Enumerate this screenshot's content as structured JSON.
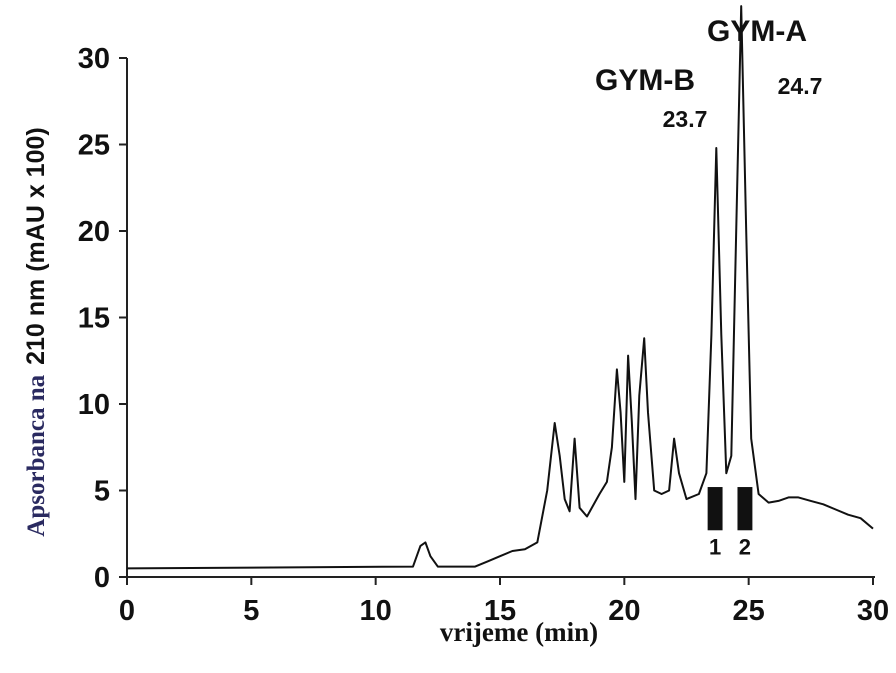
{
  "chart_data": {
    "type": "line",
    "xlabel": "vrijeme (min)",
    "ylabel_part1": "Apsorbanca na",
    "ylabel_part2": "210 nm (mAU x 100)",
    "xlim": [
      0,
      30
    ],
    "ylim": [
      0,
      30
    ],
    "x_ticks": [
      "0",
      "5",
      "10",
      "15",
      "20",
      "25",
      "30"
    ],
    "y_ticks": [
      "0",
      "5",
      "10",
      "15",
      "20",
      "25",
      "30"
    ],
    "grid": false,
    "line_color": "#111111",
    "series": [
      {
        "x": [
          0,
          11.5,
          11.8,
          12.0,
          12.2,
          12.5,
          14.0,
          14.5,
          15.0,
          15.5,
          16.0,
          16.5,
          16.9,
          17.2,
          17.4,
          17.6,
          17.8,
          18.0,
          18.2,
          18.5,
          19.0,
          19.3,
          19.5,
          19.7,
          19.85,
          20.0,
          20.15,
          20.3,
          20.45,
          20.6,
          20.8,
          20.95,
          21.2,
          21.5,
          21.8,
          22.0,
          22.2,
          22.5,
          23.0,
          23.3,
          23.5,
          23.7,
          23.9,
          24.1,
          24.3,
          24.5,
          24.7,
          24.9,
          25.1,
          25.4,
          25.8,
          26.2,
          26.6,
          27.0,
          27.5,
          28.0,
          28.5,
          29.0,
          29.5,
          30.0
        ],
        "y": [
          0.5,
          0.6,
          1.8,
          2.0,
          1.2,
          0.6,
          0.6,
          0.9,
          1.2,
          1.5,
          1.6,
          2.0,
          5.0,
          8.9,
          7.0,
          4.5,
          3.8,
          8.0,
          4.0,
          3.5,
          4.8,
          5.5,
          7.5,
          12.0,
          9.5,
          5.5,
          12.8,
          9.0,
          4.5,
          10.5,
          13.8,
          9.5,
          5.0,
          4.8,
          5.0,
          8.0,
          6.0,
          4.5,
          4.8,
          6.0,
          14.0,
          24.8,
          14.0,
          6.0,
          7.0,
          20.0,
          33.0,
          20.0,
          8.0,
          4.8,
          4.3,
          4.4,
          4.6,
          4.6,
          4.4,
          4.2,
          3.9,
          3.6,
          3.4,
          2.8
        ]
      }
    ],
    "annotations": [
      {
        "name": "GYM-A",
        "time": "24.7",
        "x": 24.7
      },
      {
        "name": "GYM-B",
        "time": "23.7",
        "x": 23.7
      }
    ],
    "fractions": [
      {
        "label": "1",
        "x_start": 23.35,
        "x_end": 23.95,
        "y_low": 2.7,
        "y_high": 5.2
      },
      {
        "label": "2",
        "x_start": 24.55,
        "x_end": 25.15,
        "y_low": 2.7,
        "y_high": 5.2
      }
    ]
  }
}
